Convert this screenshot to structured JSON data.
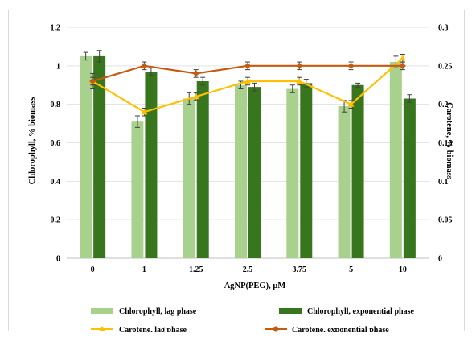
{
  "chart_data": {
    "type": "bar+line",
    "title": "",
    "xlabel": "AgNP(PEG), µM",
    "ylabel_left": "Chlorophyll, % biomass",
    "ylabel_right": "Carotene, % biomass",
    "categories": [
      "0",
      "1",
      "1.25",
      "2.5",
      "3.75",
      "5",
      "10"
    ],
    "ylim_left": [
      0,
      1.2
    ],
    "yticks_left": [
      "0",
      "0.2",
      "0.4",
      "0.6",
      "0.8",
      "1",
      "1.2"
    ],
    "ylim_right": [
      0,
      0.3
    ],
    "yticks_right": [
      "0",
      "0.05",
      "0.1",
      "0.15",
      "0.2",
      "0.25",
      "0.3"
    ],
    "grid": "horizontal",
    "legend_position": "bottom",
    "bar_series": [
      {
        "name": "Chlorophyll, lag phase",
        "color": "#a9d18e",
        "values": [
          1.05,
          0.71,
          0.83,
          0.9,
          0.88,
          0.79,
          1.02
        ],
        "errors": [
          0.02,
          0.03,
          0.03,
          0.02,
          0.02,
          0.03,
          0.03
        ]
      },
      {
        "name": "Chlorophyll, exponential phase",
        "color": "#38761d",
        "values": [
          1.05,
          0.97,
          0.92,
          0.89,
          0.91,
          0.9,
          0.83
        ],
        "errors": [
          0.03,
          0.02,
          0.02,
          0.02,
          0.02,
          0.01,
          0.02
        ]
      }
    ],
    "line_series": [
      {
        "name": "Carotene, lag phase",
        "color": "#ffc000",
        "values": [
          0.23,
          0.19,
          0.21,
          0.23,
          0.23,
          0.2,
          0.26
        ],
        "errors": [
          0.01,
          0.005,
          0.005,
          0.005,
          0.005,
          0.005,
          0.005
        ]
      },
      {
        "name": "Carotene, exponential phase",
        "color": "#c55a11",
        "values": [
          0.23,
          0.25,
          0.24,
          0.25,
          0.25,
          0.25,
          0.25
        ],
        "errors": [
          0.005,
          0.005,
          0.005,
          0.005,
          0.005,
          0.005,
          0.005
        ]
      }
    ]
  }
}
